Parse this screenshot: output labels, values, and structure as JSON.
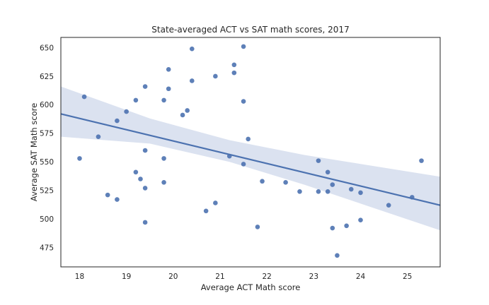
{
  "chart_data": {
    "type": "scatter",
    "title": "State-averaged ACT vs SAT math scores, 2017",
    "xlabel": "Average ACT Math score",
    "ylabel": "Average SAT Math score",
    "xlim": [
      17.6,
      25.7
    ],
    "ylim": [
      458,
      659
    ],
    "xticks": [
      18,
      19,
      20,
      21,
      22,
      23,
      24,
      25
    ],
    "yticks": [
      475,
      500,
      525,
      550,
      575,
      600,
      625,
      650
    ],
    "grid": false,
    "point_color": "#4c72b0",
    "line_color": "#4c72b0",
    "band_color": "#dbe2f0",
    "regression": {
      "x": [
        17.6,
        25.7
      ],
      "y": [
        592,
        512
      ]
    },
    "confidence_band": {
      "x": [
        17.6,
        19.5,
        21.2,
        22.8,
        25.7
      ],
      "lower": [
        572,
        566,
        550,
        530,
        490
      ],
      "upper": [
        616,
        588,
        569,
        556,
        537
      ]
    },
    "series": [
      {
        "points": [
          [
            18.0,
            553
          ],
          [
            18.1,
            607
          ],
          [
            18.4,
            572
          ],
          [
            18.6,
            521
          ],
          [
            18.8,
            586
          ],
          [
            18.8,
            517
          ],
          [
            19.0,
            594
          ],
          [
            19.2,
            604
          ],
          [
            19.2,
            541
          ],
          [
            19.3,
            535
          ],
          [
            19.4,
            616
          ],
          [
            19.4,
            560
          ],
          [
            19.4,
            527
          ],
          [
            19.4,
            497
          ],
          [
            19.8,
            604
          ],
          [
            19.8,
            553
          ],
          [
            19.8,
            532
          ],
          [
            19.9,
            631
          ],
          [
            19.9,
            614
          ],
          [
            20.2,
            591
          ],
          [
            20.3,
            595
          ],
          [
            20.4,
            649
          ],
          [
            20.4,
            621
          ],
          [
            20.7,
            507
          ],
          [
            20.9,
            625
          ],
          [
            20.9,
            514
          ],
          [
            21.2,
            555
          ],
          [
            21.3,
            635
          ],
          [
            21.3,
            628
          ],
          [
            21.5,
            651
          ],
          [
            21.5,
            603
          ],
          [
            21.5,
            548
          ],
          [
            21.6,
            570
          ],
          [
            21.8,
            493
          ],
          [
            21.9,
            533
          ],
          [
            22.4,
            532
          ],
          [
            22.7,
            524
          ],
          [
            23.1,
            551
          ],
          [
            23.1,
            524
          ],
          [
            23.3,
            541
          ],
          [
            23.3,
            524
          ],
          [
            23.4,
            530
          ],
          [
            23.4,
            492
          ],
          [
            23.5,
            468
          ],
          [
            23.7,
            494
          ],
          [
            23.8,
            526
          ],
          [
            24.0,
            523
          ],
          [
            24.0,
            499
          ],
          [
            24.6,
            512
          ],
          [
            25.1,
            519
          ],
          [
            25.3,
            551
          ]
        ]
      }
    ]
  }
}
